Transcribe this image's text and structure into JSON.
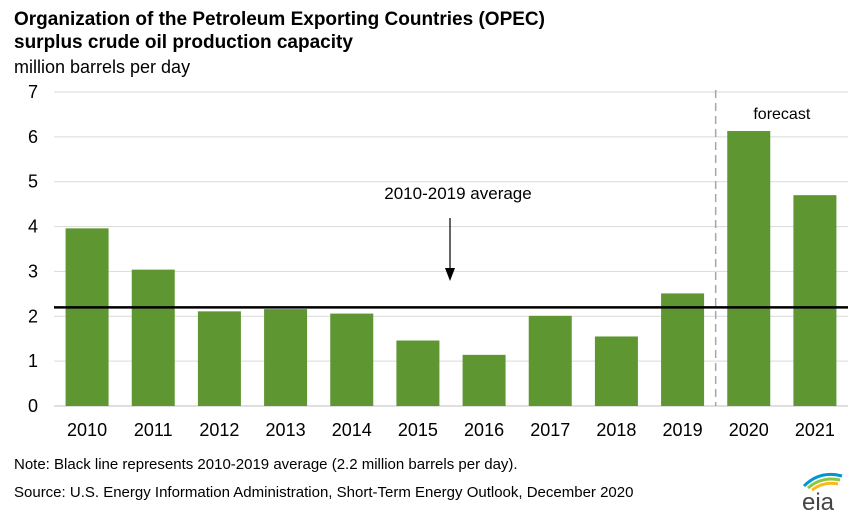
{
  "title_line1": "Organization of the Petroleum Exporting Countries (OPEC)",
  "title_line2": "surplus crude oil production capacity",
  "unit_label": "million barrels per day",
  "note": "Note: Black line represents 2010-2019 average (2.2 million barrels per day).",
  "source": "Source: U.S. Energy Information Administration, Short-Term Energy Outlook, December 2020",
  "logo_text": "eia",
  "colors": {
    "bar": "#5e9732",
    "average_line": "#000000",
    "forecast_divider": "#a6a6a6",
    "grid": "#d9d9d9"
  },
  "chart_data": {
    "type": "bar",
    "categories": [
      "2010",
      "2011",
      "2012",
      "2013",
      "2014",
      "2015",
      "2016",
      "2017",
      "2018",
      "2019",
      "2020",
      "2021"
    ],
    "values": [
      3.96,
      3.04,
      2.11,
      2.16,
      2.06,
      1.46,
      1.14,
      2.01,
      1.55,
      2.51,
      6.13,
      4.7
    ],
    "ylim": [
      0,
      7
    ],
    "yticks": [
      "0",
      "1",
      "2",
      "3",
      "4",
      "5",
      "6",
      "7"
    ],
    "grid": true,
    "average": {
      "value": 2.2,
      "label": "2010-2019 average"
    },
    "forecast": {
      "start_category": "2020",
      "label": "forecast"
    }
  }
}
